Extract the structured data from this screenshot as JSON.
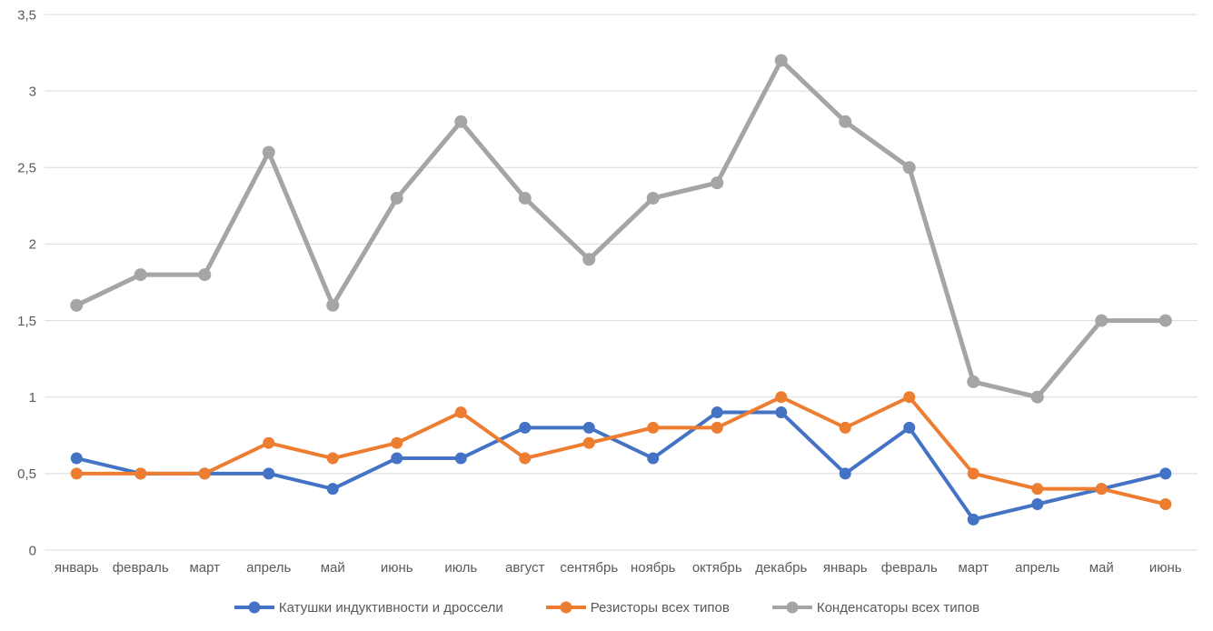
{
  "chart_data": {
    "type": "line",
    "title": "",
    "xlabel": "",
    "ylabel": "",
    "categories": [
      "январь",
      "февраль",
      "март",
      "апрель",
      "май",
      "июнь",
      "июль",
      "август",
      "сентябрь",
      "ноябрь",
      "октябрь",
      "декабрь",
      "январь",
      "февраль",
      "март",
      "апрель",
      "май",
      "июнь"
    ],
    "series": [
      {
        "name": "Катушки индуктивности и дроссели",
        "color": "#4472C4",
        "values": [
          0.6,
          0.5,
          0.5,
          0.5,
          0.4,
          0.6,
          0.6,
          0.8,
          0.8,
          0.6,
          0.9,
          0.9,
          0.5,
          0.8,
          0.2,
          0.3,
          0.4,
          0.5
        ]
      },
      {
        "name": "Резисторы всех типов",
        "color": "#ED7D31",
        "values": [
          0.5,
          0.5,
          0.5,
          0.7,
          0.6,
          0.7,
          0.9,
          0.6,
          0.7,
          0.8,
          0.8,
          1.0,
          0.8,
          1.0,
          0.5,
          0.4,
          0.4,
          0.3
        ]
      },
      {
        "name": "Конденсаторы всех типов",
        "color": "#A5A5A5",
        "values": [
          1.6,
          1.8,
          1.8,
          2.6,
          1.6,
          2.3,
          2.8,
          2.3,
          1.9,
          2.3,
          2.4,
          3.2,
          2.8,
          2.5,
          1.1,
          1.0,
          1.5,
          1.5
        ]
      }
    ],
    "ylim": [
      0,
      3.5
    ],
    "y_ticks": [
      {
        "value": 0,
        "label": "0"
      },
      {
        "value": 0.5,
        "label": "0,5"
      },
      {
        "value": 1,
        "label": "1"
      },
      {
        "value": 1.5,
        "label": "1,5"
      },
      {
        "value": 2,
        "label": "2"
      },
      {
        "value": 2.5,
        "label": "2,5"
      },
      {
        "value": 3,
        "label": "3"
      },
      {
        "value": 3.5,
        "label": "3,5"
      }
    ],
    "grid": true,
    "legend_position": "bottom"
  },
  "styles": {
    "grid_color": "#D9D9D9",
    "axis_text_color": "#595959",
    "background": "#FFFFFF"
  }
}
